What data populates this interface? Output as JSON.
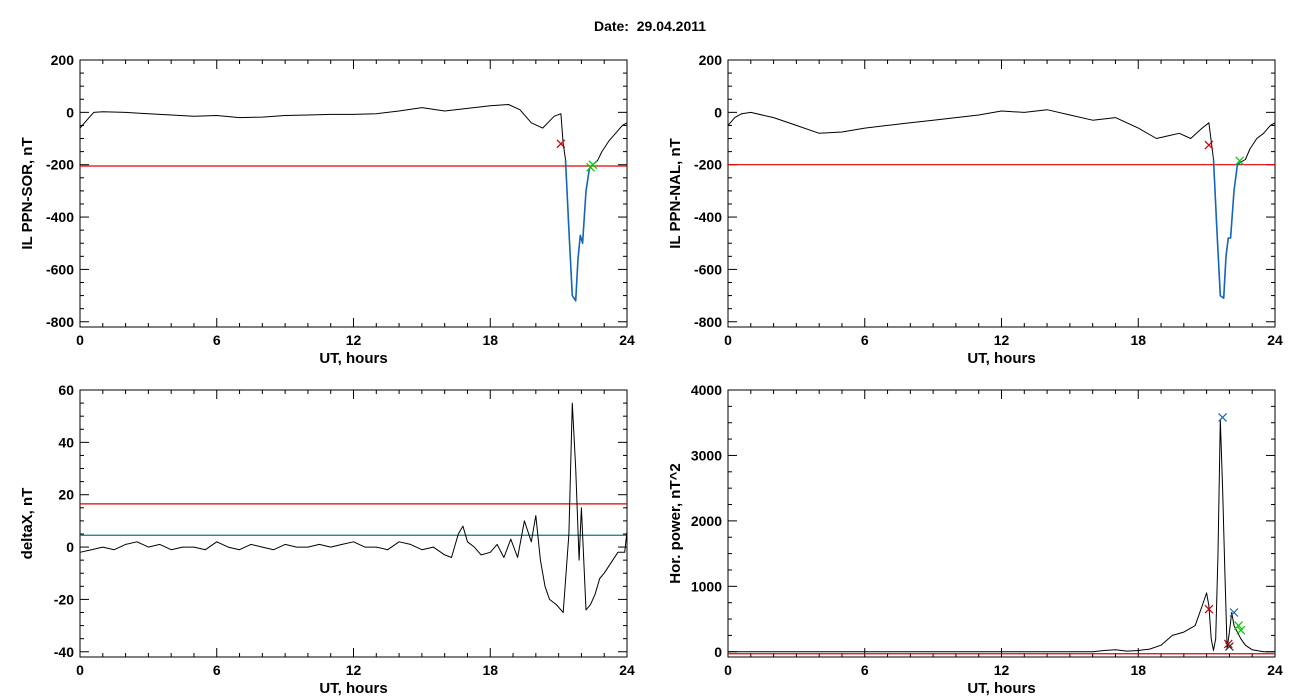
{
  "header": {
    "date_label": "Date:",
    "date_value": "29.04.2011"
  },
  "chart_data": [
    {
      "type": "line",
      "ylabel": "IL PPN-SOR, nT",
      "xlabel": "UT, hours",
      "xlim": [
        0,
        24
      ],
      "ylim": [
        -820,
        200
      ],
      "xticks": [
        "0",
        "6",
        "12",
        "18",
        "24"
      ],
      "yticks": [
        "200",
        "0",
        "-200",
        "-400",
        "-600",
        "-800"
      ],
      "threshold": -205,
      "threshold_color": "#e00000",
      "series": [
        {
          "color": "#000000",
          "x": [
            0,
            0.3,
            0.6,
            1,
            2,
            3,
            4,
            5,
            6,
            7,
            8,
            9,
            10,
            11,
            12,
            13,
            14,
            15,
            16,
            17,
            18,
            18.8,
            19.3,
            19.8,
            20.3,
            20.8,
            21.1,
            21.2,
            21.3,
            21.45,
            21.6,
            21.75,
            21.85,
            21.95,
            22.05,
            22.2,
            22.35,
            22.5,
            22.7,
            22.9,
            23.2,
            23.5,
            23.8,
            24
          ],
          "y": [
            -60,
            -30,
            0,
            2,
            0,
            -5,
            -10,
            -15,
            -12,
            -20,
            -18,
            -12,
            -10,
            -8,
            -8,
            -5,
            5,
            18,
            5,
            15,
            25,
            30,
            10,
            -40,
            -60,
            -15,
            -5,
            -120,
            -180,
            -450,
            -700,
            -720,
            -560,
            -470,
            -500,
            -300,
            -215,
            -200,
            -185,
            -150,
            -110,
            -80,
            -50,
            -40
          ]
        },
        {
          "color": "#1565c0",
          "x": [
            21.3,
            21.45,
            21.6,
            21.75,
            21.85,
            21.95,
            22.05,
            22.2,
            22.35,
            22.5
          ],
          "y": [
            -180,
            -450,
            -700,
            -720,
            -560,
            -470,
            -500,
            -300,
            -215,
            -200
          ]
        }
      ],
      "markers": [
        {
          "x": 21.1,
          "y": -120,
          "color": "#cc0000"
        },
        {
          "x": 22.4,
          "y": -210,
          "color": "#00cc00"
        },
        {
          "x": 22.5,
          "y": -200,
          "color": "#00cc00"
        }
      ]
    },
    {
      "type": "line",
      "ylabel": "IL PPN-NAL, nT",
      "xlabel": "UT, hours",
      "xlim": [
        0,
        24
      ],
      "ylim": [
        -820,
        200
      ],
      "xticks": [
        "0",
        "6",
        "12",
        "18",
        "24"
      ],
      "yticks": [
        "200",
        "0",
        "-200",
        "-400",
        "-600",
        "-800"
      ],
      "threshold": -200,
      "threshold_color": "#e00000",
      "series": [
        {
          "color": "#000000",
          "x": [
            0,
            0.3,
            0.6,
            1,
            2,
            3,
            4,
            5,
            6,
            7,
            8,
            9,
            10,
            11,
            12,
            13,
            14,
            15,
            16,
            17,
            18,
            18.8,
            19.3,
            19.8,
            20.3,
            20.8,
            21.1,
            21.2,
            21.3,
            21.45,
            21.6,
            21.75,
            21.85,
            21.95,
            22.05,
            22.2,
            22.35,
            22.5,
            22.7,
            22.9,
            23.2,
            23.5,
            23.8,
            24
          ],
          "y": [
            -50,
            -20,
            -5,
            0,
            -20,
            -50,
            -80,
            -75,
            -60,
            -50,
            -40,
            -30,
            -20,
            -10,
            5,
            0,
            10,
            -10,
            -30,
            -20,
            -60,
            -100,
            -90,
            -80,
            -100,
            -60,
            -40,
            -110,
            -180,
            -450,
            -700,
            -710,
            -550,
            -480,
            -480,
            -300,
            -200,
            -190,
            -180,
            -140,
            -100,
            -80,
            -50,
            -40
          ]
        },
        {
          "color": "#1565c0",
          "x": [
            21.3,
            21.45,
            21.6,
            21.75,
            21.85,
            21.95,
            22.05,
            22.2,
            22.35,
            22.5
          ],
          "y": [
            -180,
            -450,
            -700,
            -710,
            -550,
            -480,
            -480,
            -300,
            -200,
            -190
          ]
        }
      ],
      "markers": [
        {
          "x": 21.1,
          "y": -125,
          "color": "#cc0000"
        },
        {
          "x": 22.45,
          "y": -185,
          "color": "#00cc00"
        }
      ]
    },
    {
      "type": "line",
      "ylabel": "deltaX, nT",
      "xlabel": "UT, hours",
      "xlim": [
        0,
        24
      ],
      "ylim": [
        -42,
        60
      ],
      "xticks": [
        "0",
        "6",
        "12",
        "18",
        "24"
      ],
      "yticks": [
        "60",
        "40",
        "20",
        "0",
        "-20",
        "-40"
      ],
      "threshold": 16.5,
      "threshold_color": "#e00000",
      "threshold2": 4.5,
      "threshold2_color": "#008080",
      "series": [
        {
          "color": "#000000",
          "x": [
            0,
            0.5,
            1,
            1.5,
            2,
            2.5,
            3,
            3.5,
            4,
            4.5,
            5,
            5.5,
            6,
            6.5,
            7,
            7.5,
            8,
            8.5,
            9,
            9.5,
            10,
            10.5,
            11,
            11.5,
            12,
            12.5,
            13,
            13.5,
            14,
            14.5,
            15,
            15.5,
            16,
            16.3,
            16.6,
            16.8,
            17,
            17.3,
            17.6,
            18,
            18.3,
            18.6,
            18.9,
            19.2,
            19.5,
            19.8,
            20,
            20.2,
            20.4,
            20.6,
            20.9,
            21.2,
            21.45,
            21.6,
            21.75,
            21.9,
            22,
            22.2,
            22.4,
            22.6,
            22.8,
            23,
            23.3,
            23.6,
            23.9,
            24
          ],
          "y": [
            -2,
            -1,
            0,
            -1,
            1,
            2,
            0,
            1,
            -1,
            0,
            0,
            -1,
            2,
            0,
            -1,
            1,
            0,
            -1,
            1,
            0,
            0,
            1,
            0,
            1,
            2,
            0,
            0,
            -1,
            2,
            1,
            -1,
            0,
            -3,
            -4,
            5,
            8,
            2,
            0,
            -3,
            -2,
            1,
            -4,
            3,
            -4,
            10,
            2,
            12,
            -5,
            -15,
            -20,
            -22,
            -25,
            5,
            55,
            30,
            -5,
            15,
            -24,
            -22,
            -18,
            -12,
            -10,
            -6,
            -2,
            -2,
            6
          ]
        }
      ],
      "markers": []
    },
    {
      "type": "line",
      "ylabel": "Hor. power, nT^2",
      "xlabel": "UT, hours",
      "xlim": [
        0,
        24
      ],
      "ylim": [
        -80,
        4000
      ],
      "xticks": [
        "0",
        "6",
        "12",
        "18",
        "24"
      ],
      "yticks": [
        "4000",
        "3000",
        "2000",
        "1000",
        "0"
      ],
      "threshold": -30,
      "threshold_color": "#e00000",
      "series": [
        {
          "color": "#000000",
          "x": [
            0,
            1,
            2,
            3,
            4,
            5,
            6,
            7,
            8,
            9,
            10,
            11,
            12,
            13,
            14,
            15,
            16,
            16.5,
            17,
            17.5,
            18,
            18.5,
            19,
            19.5,
            20,
            20.5,
            20.8,
            21,
            21.1,
            21.2,
            21.3,
            21.4,
            21.5,
            21.6,
            21.7,
            21.8,
            21.9,
            22,
            22.1,
            22.2,
            22.35,
            22.5,
            22.7,
            23,
            23.5,
            24
          ],
          "y": [
            0,
            0,
            0,
            0,
            0,
            0,
            0,
            0,
            0,
            0,
            0,
            0,
            0,
            0,
            0,
            0,
            0,
            20,
            30,
            10,
            20,
            40,
            100,
            250,
            300,
            400,
            700,
            900,
            700,
            200,
            20,
            200,
            1500,
            3550,
            2500,
            1200,
            50,
            300,
            600,
            400,
            300,
            200,
            100,
            30,
            0,
            0
          ]
        }
      ],
      "markers": [
        {
          "x": 21.1,
          "y": 650,
          "color": "#cc0000"
        },
        {
          "x": 21.7,
          "y": 3580,
          "color": "#1565c0"
        },
        {
          "x": 21.95,
          "y": 120,
          "color": "#cc0000"
        },
        {
          "x": 22.0,
          "y": 80,
          "color": "#333333"
        },
        {
          "x": 22.2,
          "y": 600,
          "color": "#1565c0"
        },
        {
          "x": 22.4,
          "y": 400,
          "color": "#00cc00"
        },
        {
          "x": 22.5,
          "y": 330,
          "color": "#00cc00"
        }
      ]
    }
  ]
}
